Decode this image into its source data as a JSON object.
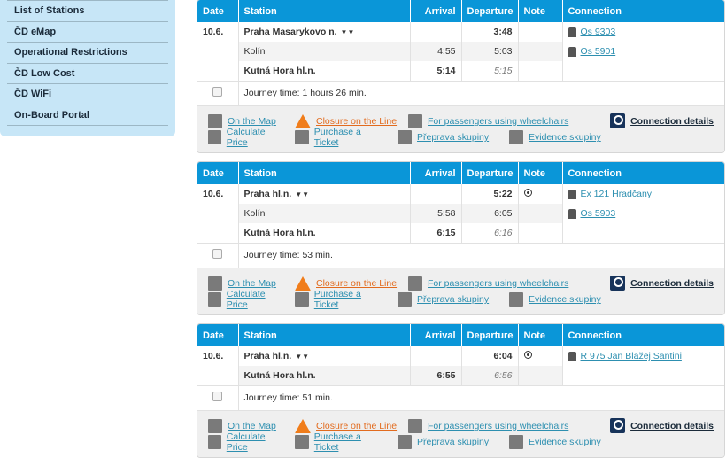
{
  "sidebar": {
    "items": [
      {
        "label": "List of Stations"
      },
      {
        "label": "ČD eMap"
      },
      {
        "label": "Operational Restrictions"
      },
      {
        "label": "ČD Low Cost"
      },
      {
        "label": "ČD WiFi"
      },
      {
        "label": "On-Board Portal"
      }
    ]
  },
  "headers": {
    "date": "Date",
    "station": "Station",
    "arrival": "Arrival",
    "departure": "Departure",
    "note": "Note",
    "connection": "Connection"
  },
  "footer": {
    "map": "On the Map",
    "closure": "Closure on the Line",
    "wheelchair": "For passengers using wheelchairs",
    "price": "Calculate Price",
    "ticket": "Purchase a Ticket",
    "group_transport": "Přeprava skupiny",
    "group_record": "Evidence skupiny",
    "details": "Connection details"
  },
  "connections": [
    {
      "date": "10.6.",
      "journey": "Journey time: 1 hours 26 min.",
      "stops": [
        {
          "station": "Praha Masarykovo n.",
          "arrival": "",
          "departure": "3:48",
          "note": false,
          "connection": "Os 9303",
          "type": "origin"
        },
        {
          "station": "Kolín",
          "arrival": "4:55",
          "departure": "5:03",
          "note": false,
          "connection": "Os 5901",
          "type": "transfer"
        },
        {
          "station": "Kutná Hora hl.n.",
          "arrival": "5:14",
          "departure": "5:15",
          "note": false,
          "connection": "",
          "type": "dest"
        }
      ]
    },
    {
      "date": "10.6.",
      "journey": "Journey time: 53 min.",
      "stops": [
        {
          "station": "Praha hl.n.",
          "arrival": "",
          "departure": "5:22",
          "note": true,
          "connection": "Ex 121 Hradčany",
          "type": "origin"
        },
        {
          "station": "Kolín",
          "arrival": "5:58",
          "departure": "6:05",
          "note": false,
          "connection": "Os 5903",
          "type": "transfer"
        },
        {
          "station": "Kutná Hora hl.n.",
          "arrival": "6:15",
          "departure": "6:16",
          "note": false,
          "connection": "",
          "type": "dest"
        }
      ]
    },
    {
      "date": "10.6.",
      "journey": "Journey time: 51 min.",
      "stops": [
        {
          "station": "Praha hl.n.",
          "arrival": "",
          "departure": "6:04",
          "note": true,
          "connection": "R 975 Jan Blažej Santini",
          "type": "origin"
        },
        {
          "station": "Kutná Hora hl.n.",
          "arrival": "6:55",
          "departure": "6:56",
          "note": false,
          "connection": "",
          "type": "dest"
        }
      ]
    }
  ]
}
